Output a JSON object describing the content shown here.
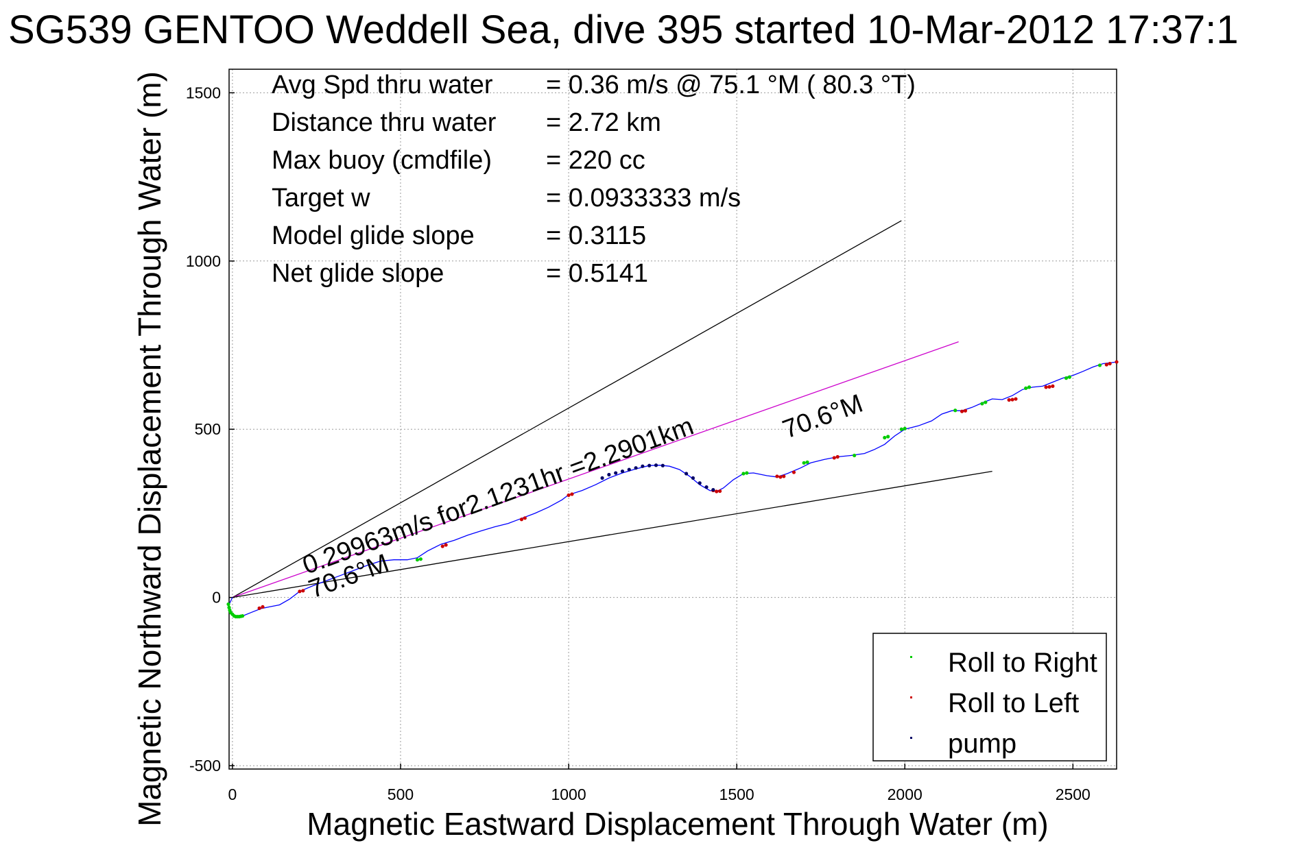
{
  "chart_data": {
    "type": "scatter",
    "title": "SG539 GENTOO Weddell Sea, dive 395 started 10-Mar-2012 17:37:1",
    "xlabel": "Magnetic Eastward Displacement Through Water (m)",
    "ylabel": "Magnetic Northward Displacement Through Water (m)",
    "xlim": [
      -10,
      2630
    ],
    "ylim": [
      -510,
      1570
    ],
    "grid": true,
    "xticks": [
      0,
      500,
      1000,
      1500,
      2000,
      2500
    ],
    "yticks": [
      -500,
      0,
      500,
      1000,
      1500
    ],
    "xtick_labels": [
      "0",
      "500",
      "1000",
      "1500",
      "2000",
      "2500"
    ],
    "ytick_labels": [
      "-500",
      "0",
      "500",
      "1000",
      "1500"
    ],
    "stats": [
      {
        "label": "Avg Spd thru water",
        "value": "=  0.36 m/s @  75.1 °M ( 80.3 °T)"
      },
      {
        "label": "Distance thru water",
        "value": "=  2.72 km"
      },
      {
        "label": "Max buoy (cmdfile)",
        "value": "= 220 cc"
      },
      {
        "label": "Target w",
        "value": "= 0.0933333 m/s"
      },
      {
        "label": "Model glide slope",
        "value": "= 0.3115"
      },
      {
        "label": "Net glide slope",
        "value": "= 0.5141"
      }
    ],
    "annotations": {
      "speed": "0.29963m/s for2.1231hr =2.2901km",
      "heading_lower": "70.6°M",
      "heading_upper": "70.6°M"
    },
    "reference_lines": [
      {
        "name": "upper-bound",
        "color": "#000000",
        "x": [
          0,
          1990
        ],
        "y": [
          0,
          1120
        ]
      },
      {
        "name": "target-course",
        "color": "#cc00cc",
        "x": [
          0,
          2160
        ],
        "y": [
          0,
          760
        ]
      },
      {
        "name": "lower-bound",
        "color": "#000000",
        "x": [
          0,
          2260
        ],
        "y": [
          0,
          375
        ]
      }
    ],
    "track": {
      "color": "#0000ff",
      "x": [
        0,
        -5,
        -12,
        -10,
        0,
        15,
        30,
        55,
        85,
        110,
        140,
        170,
        200,
        240,
        280,
        320,
        360,
        400,
        440,
        480,
        520,
        550,
        580,
        620,
        660,
        700,
        740,
        780,
        820,
        860,
        900,
        940,
        980,
        1000,
        1040,
        1080,
        1120,
        1160,
        1200,
        1240,
        1270,
        1300,
        1330,
        1360,
        1390,
        1420,
        1440,
        1460,
        1490,
        1520,
        1550,
        1590,
        1620,
        1650,
        1690,
        1720,
        1760,
        1800,
        1840,
        1880,
        1910,
        1940,
        1970,
        2000,
        2040,
        2080,
        2110,
        2140,
        2170,
        2200,
        2230,
        2260,
        2290,
        2320,
        2350,
        2380,
        2410,
        2440,
        2470,
        2500,
        2530,
        2560,
        2590,
        2630
      ],
      "y": [
        0,
        -10,
        -25,
        -40,
        -52,
        -57,
        -55,
        -45,
        -33,
        -28,
        -22,
        -5,
        18,
        35,
        50,
        65,
        80,
        95,
        108,
        112,
        112,
        118,
        138,
        158,
        170,
        185,
        198,
        210,
        220,
        235,
        250,
        268,
        290,
        305,
        318,
        335,
        355,
        370,
        382,
        392,
        393,
        390,
        380,
        360,
        335,
        318,
        315,
        325,
        350,
        368,
        370,
        362,
        358,
        368,
        385,
        400,
        410,
        418,
        422,
        428,
        440,
        455,
        480,
        500,
        510,
        525,
        545,
        555,
        555,
        565,
        578,
        590,
        588,
        600,
        618,
        625,
        628,
        640,
        652,
        660,
        672,
        685,
        695,
        700
      ]
    },
    "roll_right": {
      "color": "#00cc00",
      "x": [
        -12,
        -10,
        -8,
        -5,
        0,
        5,
        10,
        15,
        20,
        25,
        30,
        550,
        560,
        1520,
        1530,
        1700,
        1710,
        1850,
        1940,
        1950,
        1990,
        2000,
        2150,
        2230,
        2240,
        2360,
        2370,
        2480,
        2490,
        2580
      ],
      "y": [
        -20,
        -30,
        -38,
        -45,
        -50,
        -55,
        -57,
        -57,
        -57,
        -56,
        -55,
        112,
        114,
        368,
        370,
        400,
        402,
        422,
        475,
        478,
        500,
        502,
        556,
        576,
        580,
        622,
        625,
        652,
        655,
        690
      ]
    },
    "roll_left": {
      "color": "#cc0000",
      "x": [
        80,
        90,
        200,
        210,
        625,
        635,
        860,
        870,
        1000,
        1010,
        1430,
        1440,
        1450,
        1620,
        1630,
        1640,
        1670,
        1790,
        1800,
        2170,
        2180,
        2310,
        2320,
        2330,
        2420,
        2430,
        2440,
        2600,
        2610,
        2630
      ],
      "y": [
        -32,
        -28,
        18,
        20,
        152,
        156,
        232,
        236,
        304,
        307,
        318,
        315,
        316,
        360,
        358,
        360,
        372,
        415,
        418,
        553,
        555,
        587,
        588,
        590,
        625,
        626,
        628,
        692,
        695,
        700
      ]
    },
    "pump": {
      "color": "#000066",
      "x": [
        1100,
        1120,
        1140,
        1160,
        1180,
        1200,
        1220,
        1240,
        1260,
        1280,
        1350,
        1370,
        1390,
        1410,
        1430
      ],
      "y": [
        355,
        365,
        370,
        375,
        380,
        385,
        390,
        392,
        393,
        392,
        368,
        355,
        340,
        328,
        320
      ]
    },
    "legend": {
      "placement": "bottom-right",
      "entries": [
        {
          "label": "Roll to Right",
          "color": "#00cc00"
        },
        {
          "label": "Roll to Left",
          "color": "#cc0000"
        },
        {
          "label": "pump",
          "color": "#000066"
        }
      ]
    }
  }
}
